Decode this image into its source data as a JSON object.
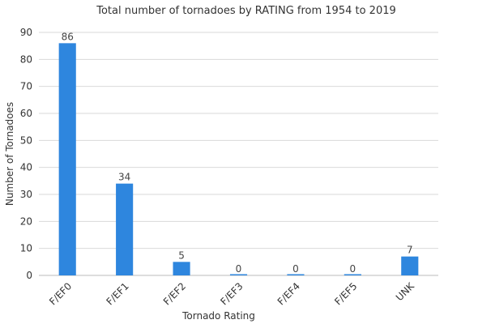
{
  "chart_data": {
    "type": "bar",
    "title": "Total number of tornadoes by RATING from 1954 to 2019",
    "xlabel": "Tornado Rating",
    "ylabel": "Number of Tornadoes",
    "categories": [
      "F/EF0",
      "F/EF1",
      "F/EF2",
      "F/EF3",
      "F/EF4",
      "F/EF5",
      "UNK"
    ],
    "values": [
      86,
      34,
      5,
      0,
      0,
      0,
      7
    ],
    "ylim": [
      0,
      90
    ],
    "yticks": [
      0,
      10,
      20,
      30,
      40,
      50,
      60,
      70,
      80,
      90
    ],
    "grid": true,
    "legend": "none",
    "bar_color": "#2e86de"
  }
}
